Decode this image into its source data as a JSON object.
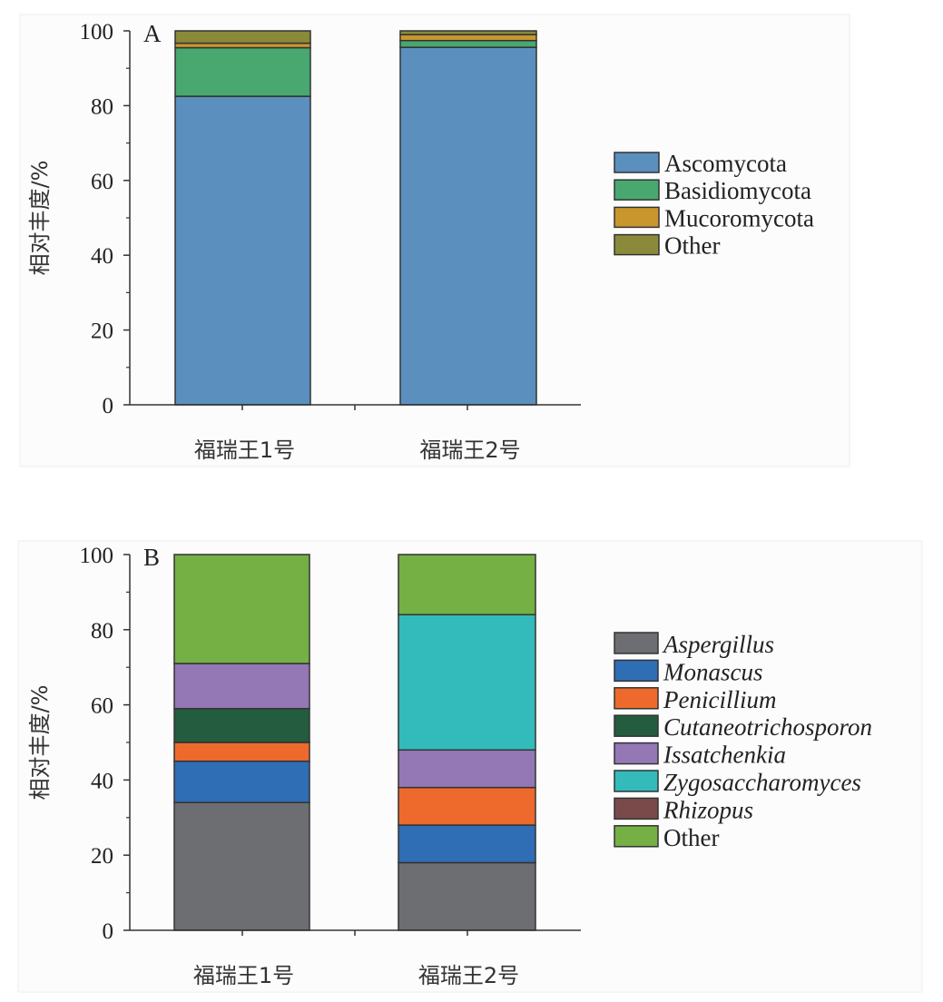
{
  "chart_data": [
    {
      "type": "bar",
      "stacked": true,
      "panel": "A",
      "title": "",
      "xlabel": "",
      "ylabel": "相对丰度/%",
      "ylim": [
        0,
        100
      ],
      "yticks": [
        0,
        20,
        40,
        60,
        80,
        100
      ],
      "y_minor_step": 10,
      "grid": false,
      "legend_position": "right",
      "categories": [
        "福瑞王1号",
        "福瑞王2号"
      ],
      "series": [
        {
          "name": "Ascomycota",
          "italic": false,
          "color": "#5B8FBE",
          "values": [
            82.5,
            95.6
          ]
        },
        {
          "name": "Basidiomycota",
          "italic": false,
          "color": "#48A870",
          "values": [
            13.0,
            1.8
          ]
        },
        {
          "name": "Mucoromycota",
          "italic": false,
          "color": "#C9962E",
          "values": [
            1.2,
            1.6
          ]
        },
        {
          "name": "Other",
          "italic": false,
          "color": "#8A8A3A",
          "values": [
            3.3,
            1.0
          ]
        }
      ]
    },
    {
      "type": "bar",
      "stacked": true,
      "panel": "B",
      "title": "",
      "xlabel": "",
      "ylabel": "相对丰度/%",
      "ylim": [
        0,
        100
      ],
      "yticks": [
        0,
        20,
        40,
        60,
        80,
        100
      ],
      "y_minor_step": 10,
      "grid": false,
      "legend_position": "right",
      "categories": [
        "福瑞王1号",
        "福瑞王2号"
      ],
      "series": [
        {
          "name": "Aspergillus",
          "italic": true,
          "color": "#6D6E71",
          "values": [
            34,
            18
          ]
        },
        {
          "name": "Monascus",
          "italic": true,
          "color": "#2F6DB5",
          "values": [
            11,
            10
          ]
        },
        {
          "name": "Penicillium",
          "italic": true,
          "color": "#EE6A2C",
          "values": [
            5,
            10
          ]
        },
        {
          "name": "Cutaneotrichosporon",
          "italic": true,
          "color": "#235C3E",
          "values": [
            9,
            0
          ]
        },
        {
          "name": "Issatchenkia",
          "italic": true,
          "color": "#9477B5",
          "values": [
            12,
            10
          ]
        },
        {
          "name": "Zygosaccharomyces",
          "italic": true,
          "color": "#33BBBB",
          "values": [
            0,
            36
          ]
        },
        {
          "name": "Rhizopus",
          "italic": true,
          "color": "#7A4A4A",
          "values": [
            0,
            0
          ]
        },
        {
          "name": "Other",
          "italic": false,
          "color": "#74B043",
          "values": [
            29,
            16
          ]
        }
      ]
    }
  ]
}
